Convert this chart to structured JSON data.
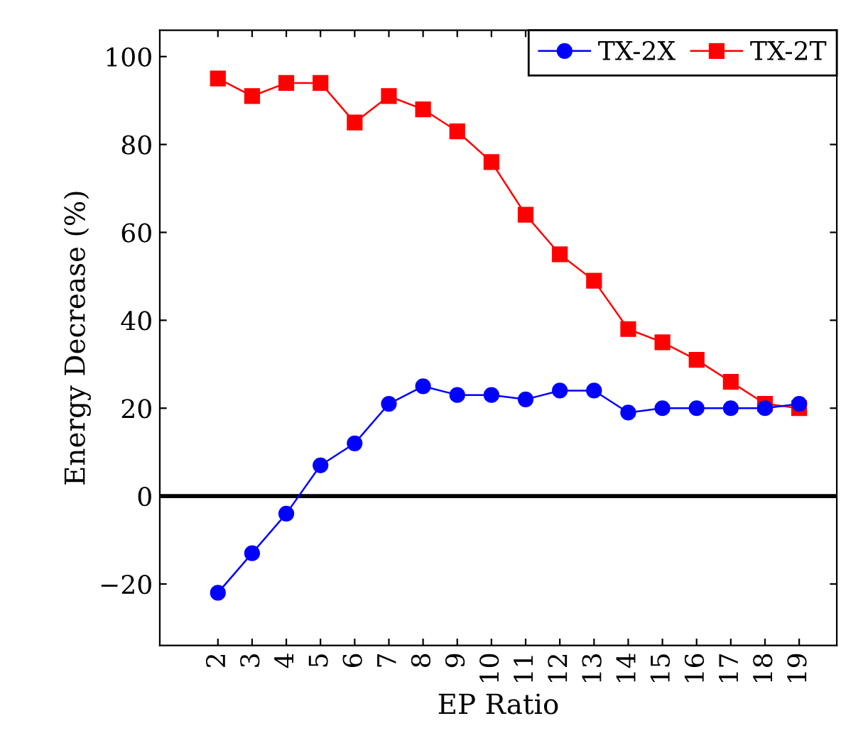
{
  "chart_data": {
    "type": "line",
    "xlabel": "EP Ratio",
    "ylabel": "Energy Decrease (%)",
    "x": [
      2,
      3,
      4,
      5,
      6,
      7,
      8,
      9,
      10,
      11,
      12,
      13,
      14,
      15,
      16,
      17,
      18,
      19
    ],
    "series": [
      {
        "name": "TX-2X",
        "color": "#0000ff",
        "marker": "circle",
        "values": [
          -22,
          -13,
          -4,
          7,
          12,
          21,
          25,
          23,
          23,
          22,
          24,
          24,
          19,
          20,
          20,
          20,
          20,
          21
        ]
      },
      {
        "name": "TX-2T",
        "color": "#ff0000",
        "marker": "square",
        "values": [
          95,
          91,
          94,
          94,
          85,
          91,
          88,
          83,
          76,
          64,
          55,
          49,
          38,
          35,
          31,
          26,
          21,
          20
        ]
      }
    ],
    "xlim": [
      0.3,
      20.1
    ],
    "xticks": [
      2,
      3,
      4,
      5,
      6,
      7,
      8,
      9,
      10,
      11,
      12,
      13,
      14,
      15,
      16,
      17,
      18,
      19
    ],
    "ylim": [
      -34,
      106
    ],
    "yticks": [
      {
        "value": -20,
        "label": "−20"
      },
      0,
      20,
      40,
      60,
      80,
      100
    ],
    "ref_lines": [
      {
        "axis": "y",
        "value": 0,
        "color": "#000000"
      }
    ],
    "legend": "top right",
    "grid": false
  }
}
